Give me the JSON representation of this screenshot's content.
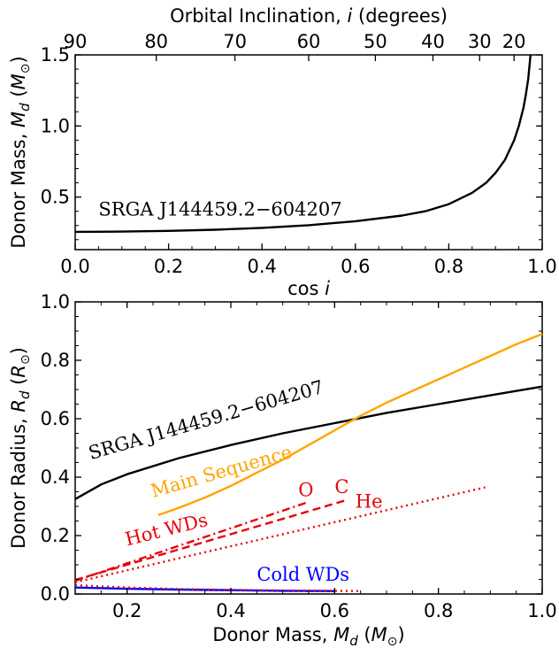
{
  "chart_data": [
    {
      "type": "line",
      "xlabel": "cos i",
      "ylabel": "Donor Mass, M_d (M_⊙)",
      "top_xlabel": "Orbital Inclination, i (degrees)",
      "xlim": [
        0.0,
        1.0
      ],
      "ylim": [
        0.13,
        1.5
      ],
      "xticks": [
        0.0,
        0.2,
        0.4,
        0.6,
        0.8,
        1.0
      ],
      "xtick_labels": [
        "0.0",
        "0.2",
        "0.4",
        "0.6",
        "0.8",
        "1.0"
      ],
      "yticks": [
        0.5,
        1.0,
        1.5
      ],
      "ytick_labels": [
        "0.5",
        "1.0",
        "1.5"
      ],
      "top_ticks_deg": [
        90,
        80,
        70,
        60,
        50,
        40,
        30,
        20
      ],
      "top_tick_labels": [
        "90",
        "80",
        "70",
        "60",
        "50",
        "40",
        "30",
        "20"
      ],
      "series": [
        {
          "color": "#000000",
          "x": [
            0.0,
            0.1,
            0.2,
            0.3,
            0.4,
            0.5,
            0.6,
            0.7,
            0.75,
            0.8,
            0.85,
            0.88,
            0.9,
            0.92,
            0.94,
            0.95,
            0.96,
            0.965,
            0.97,
            0.975
          ],
          "y": [
            0.255,
            0.257,
            0.262,
            0.27,
            0.283,
            0.302,
            0.33,
            0.37,
            0.4,
            0.45,
            0.53,
            0.6,
            0.67,
            0.76,
            0.9,
            1.0,
            1.13,
            1.22,
            1.33,
            1.5
          ]
        }
      ],
      "annotations": [
        {
          "text": "SRGA J144459.2−604207",
          "color": "#000000",
          "at": [
            0.05,
            0.37
          ]
        }
      ]
    },
    {
      "type": "line",
      "xlabel": "Donor Mass, M_d (M_⊙)",
      "ylabel": "Donor Radius, R_d (R_⊙)",
      "xlim": [
        0.1,
        1.0
      ],
      "ylim": [
        0.0,
        1.0
      ],
      "xticks": [
        0.2,
        0.4,
        0.6,
        0.8,
        1.0
      ],
      "xtick_labels": [
        "0.2",
        "0.4",
        "0.6",
        "0.8",
        "1.0"
      ],
      "yticks": [
        0.0,
        0.2,
        0.4,
        0.6,
        0.8,
        1.0
      ],
      "ytick_labels": [
        "0.0",
        "0.2",
        "0.4",
        "0.6",
        "0.8",
        "1.0"
      ],
      "series": [
        {
          "color": "#000000",
          "style": "solid",
          "x": [
            0.1,
            0.15,
            0.2,
            0.3,
            0.4,
            0.5,
            0.6,
            0.7,
            0.8,
            0.9,
            1.0
          ],
          "y": [
            0.325,
            0.375,
            0.41,
            0.465,
            0.51,
            0.55,
            0.585,
            0.62,
            0.65,
            0.68,
            0.71
          ]
        },
        {
          "color": "#FFA500",
          "style": "solid",
          "x": [
            0.26,
            0.3,
            0.35,
            0.4,
            0.45,
            0.5,
            0.55,
            0.6,
            0.65,
            0.7,
            0.75,
            0.8,
            0.85,
            0.9,
            0.95,
            1.0
          ],
          "y": [
            0.27,
            0.295,
            0.33,
            0.37,
            0.415,
            0.46,
            0.51,
            0.56,
            0.61,
            0.655,
            0.695,
            0.735,
            0.775,
            0.815,
            0.855,
            0.89
          ]
        },
        {
          "color": "#E8000B",
          "style": "dotted",
          "x": [
            0.1,
            0.89
          ],
          "y": [
            0.04,
            0.365
          ]
        },
        {
          "color": "#E8000B",
          "style": "dashdot",
          "x": [
            0.1,
            0.55
          ],
          "y": [
            0.045,
            0.315
          ]
        },
        {
          "color": "#E8000B",
          "style": "dashed",
          "x": [
            0.1,
            0.62
          ],
          "y": [
            0.048,
            0.32
          ]
        },
        {
          "color": "#0000FF",
          "style": "solid",
          "x": [
            0.1,
            0.2,
            0.3,
            0.4,
            0.5,
            0.6
          ],
          "y": [
            0.022,
            0.018,
            0.015,
            0.013,
            0.011,
            0.01
          ]
        },
        {
          "color": "#E8000B",
          "style": "dotted",
          "x": [
            0.1,
            0.2,
            0.3,
            0.4,
            0.5,
            0.65
          ],
          "y": [
            0.03,
            0.022,
            0.017,
            0.014,
            0.012,
            0.01
          ]
        }
      ],
      "annotations": [
        {
          "text": "SRGA J144459.2−604207",
          "color": "#000000",
          "at": [
            0.13,
            0.46
          ],
          "rotate": -16
        },
        {
          "text": "Main Sequence",
          "color": "#FFA500",
          "at": [
            0.25,
            0.33
          ],
          "rotate": -16
        },
        {
          "text": "Hot WDs",
          "color": "#E8000B",
          "at": [
            0.2,
            0.165
          ],
          "rotate": -14
        },
        {
          "text": "O",
          "color": "#E8000B",
          "at": [
            0.53,
            0.335
          ]
        },
        {
          "text": "C",
          "color": "#E8000B",
          "at": [
            0.6,
            0.345
          ]
        },
        {
          "text": "He",
          "color": "#E8000B",
          "at": [
            0.64,
            0.295
          ]
        },
        {
          "text": "Cold WDs",
          "color": "#0000FF",
          "at": [
            0.45,
            0.045
          ]
        }
      ]
    }
  ]
}
